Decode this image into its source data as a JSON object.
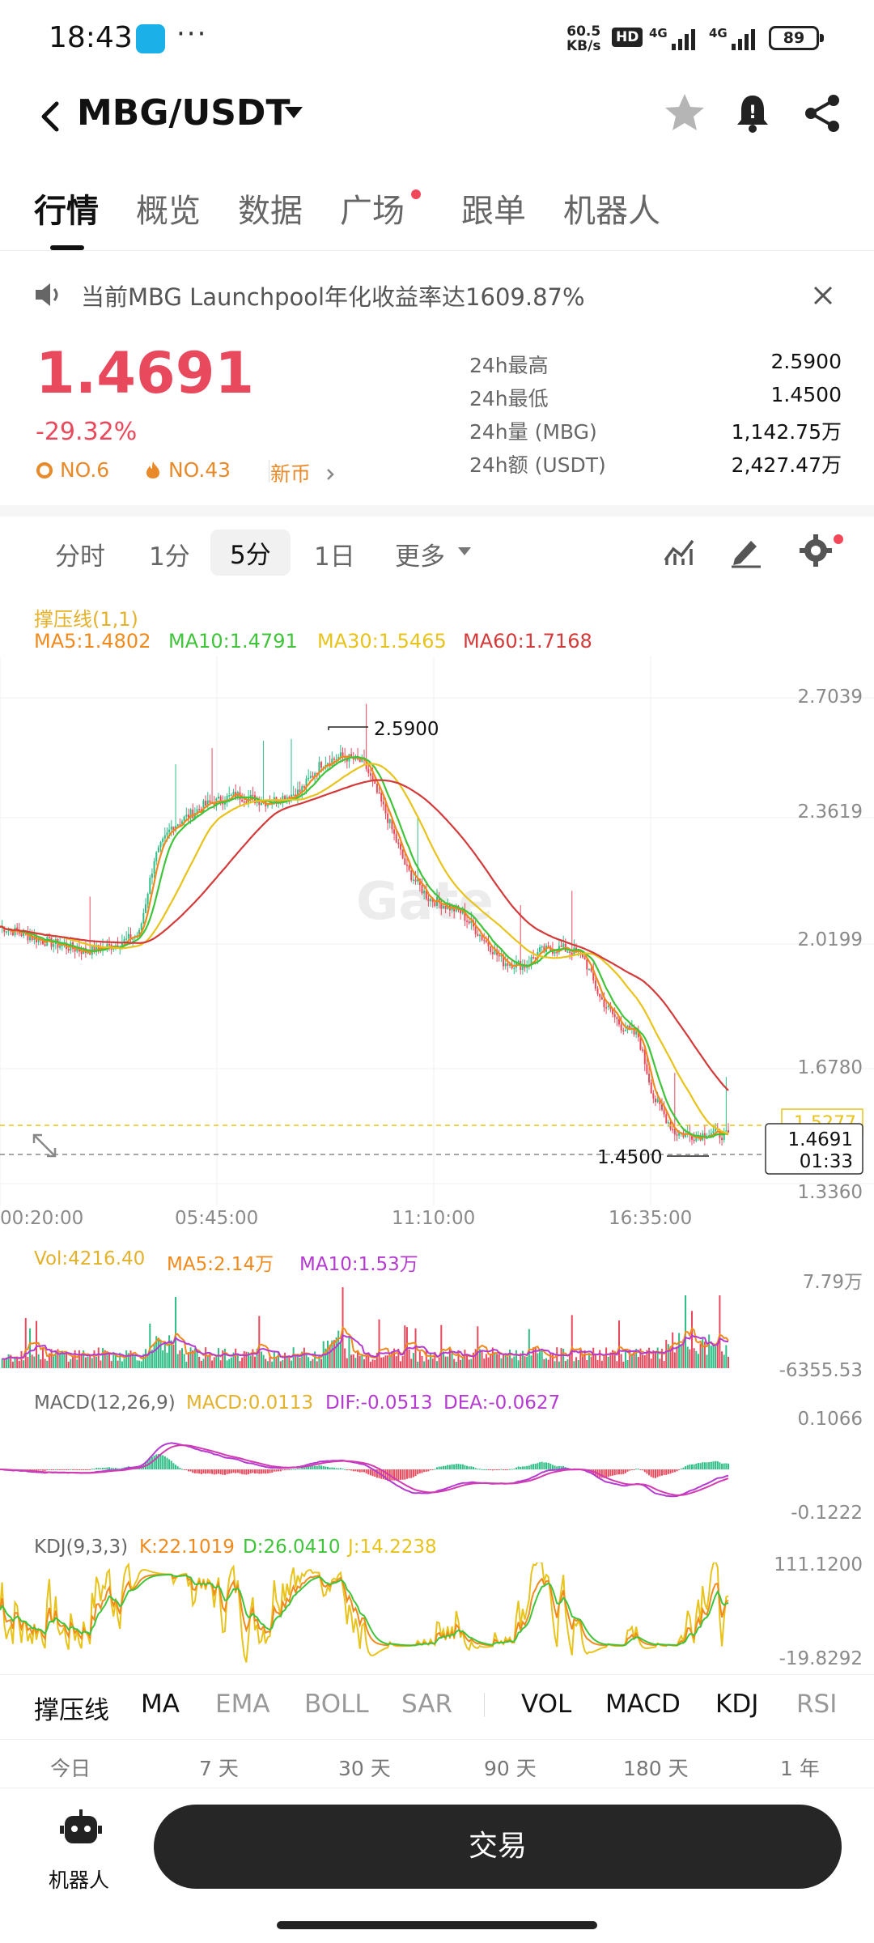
{
  "status_bar": {
    "time": "18:43",
    "dots": "···",
    "speed_top": "60.5",
    "speed_bottom": "KB/s",
    "hd": "HD",
    "net1": "4G",
    "net2": "4G",
    "battery": "89"
  },
  "header": {
    "pair": "MBG/USDT"
  },
  "tabs": [
    {
      "label": "行情"
    },
    {
      "label": "概览"
    },
    {
      "label": "数据"
    },
    {
      "label": "广场"
    },
    {
      "label": "跟单"
    },
    {
      "label": "机器人"
    }
  ],
  "notice": {
    "text": "当前MBG Launchpool年化收益率达1609.87%"
  },
  "price": {
    "last": "1.4691",
    "change": "-29.32%",
    "rank1": "NO.6",
    "rank2": "NO.43",
    "tag": "新币"
  },
  "stats": [
    {
      "label": "24h最高",
      "value": "2.5900"
    },
    {
      "label": "24h最低",
      "value": "1.4500"
    },
    {
      "label": "24h量 (MBG)",
      "value": "1,142.75万"
    },
    {
      "label": "24h额 (USDT)",
      "value": "2,427.47万"
    }
  ],
  "timeframes": {
    "t1": "分时",
    "t2": "1分",
    "t3": "5分",
    "t4": "1日",
    "more": "更多"
  },
  "chart": {
    "indicator_title": "撑压线(1,1)",
    "ma5": "MA5:1.4802",
    "ma10": "MA10:1.4791",
    "ma30": "MA30:1.5465",
    "ma60": "MA60:1.7168",
    "y_ticks": [
      "2.7039",
      "2.3619",
      "2.0199",
      "1.6780",
      "1.3360"
    ],
    "high_label": "2.5900",
    "low_label": "1.4500",
    "resistance_label": "1.5277",
    "last_price_label": "1.4691",
    "countdown": "01:33",
    "time_ticks": [
      "00:20:00",
      "05:45:00",
      "11:10:00",
      "16:35:00"
    ],
    "colors": {
      "ma5": "#f08a1c",
      "ma10": "#3fc43a",
      "ma30": "#e8c31c",
      "ma60": "#d43a3a",
      "up": "#2ebd85",
      "down": "#e8495c"
    }
  },
  "volume": {
    "vol": "Vol:4216.40",
    "ma5": "MA5:2.14万",
    "ma10": "MA10:1.53万",
    "y_top": "7.79万",
    "y_bottom": "-6355.53"
  },
  "macd": {
    "title": "MACD(12,26,9)",
    "macd": "MACD:0.0113",
    "dif": "DIF:-0.0513",
    "dea": "DEA:-0.0627",
    "y_top": "0.1066",
    "y_bottom": "-0.1222"
  },
  "kdj": {
    "title": "KDJ(9,3,3)",
    "k": "K:22.1019",
    "d": "D:26.0410",
    "j": "J:14.2238",
    "y_top": "111.1200",
    "y_bottom": "-19.8292"
  },
  "indicators": [
    {
      "label": "撑压线"
    },
    {
      "label": "MA"
    },
    {
      "label": "EMA"
    },
    {
      "label": "BOLL"
    },
    {
      "label": "SAR"
    },
    {
      "label": "VOL"
    },
    {
      "label": "MACD"
    },
    {
      "label": "KDJ"
    },
    {
      "label": "RSI"
    }
  ],
  "ranges": [
    {
      "label": "今日"
    },
    {
      "label": "7 天"
    },
    {
      "label": "30 天"
    },
    {
      "label": "90 天"
    },
    {
      "label": "180 天"
    },
    {
      "label": "1 年"
    }
  ],
  "bottom": {
    "robot": "机器人",
    "trade": "交易"
  }
}
